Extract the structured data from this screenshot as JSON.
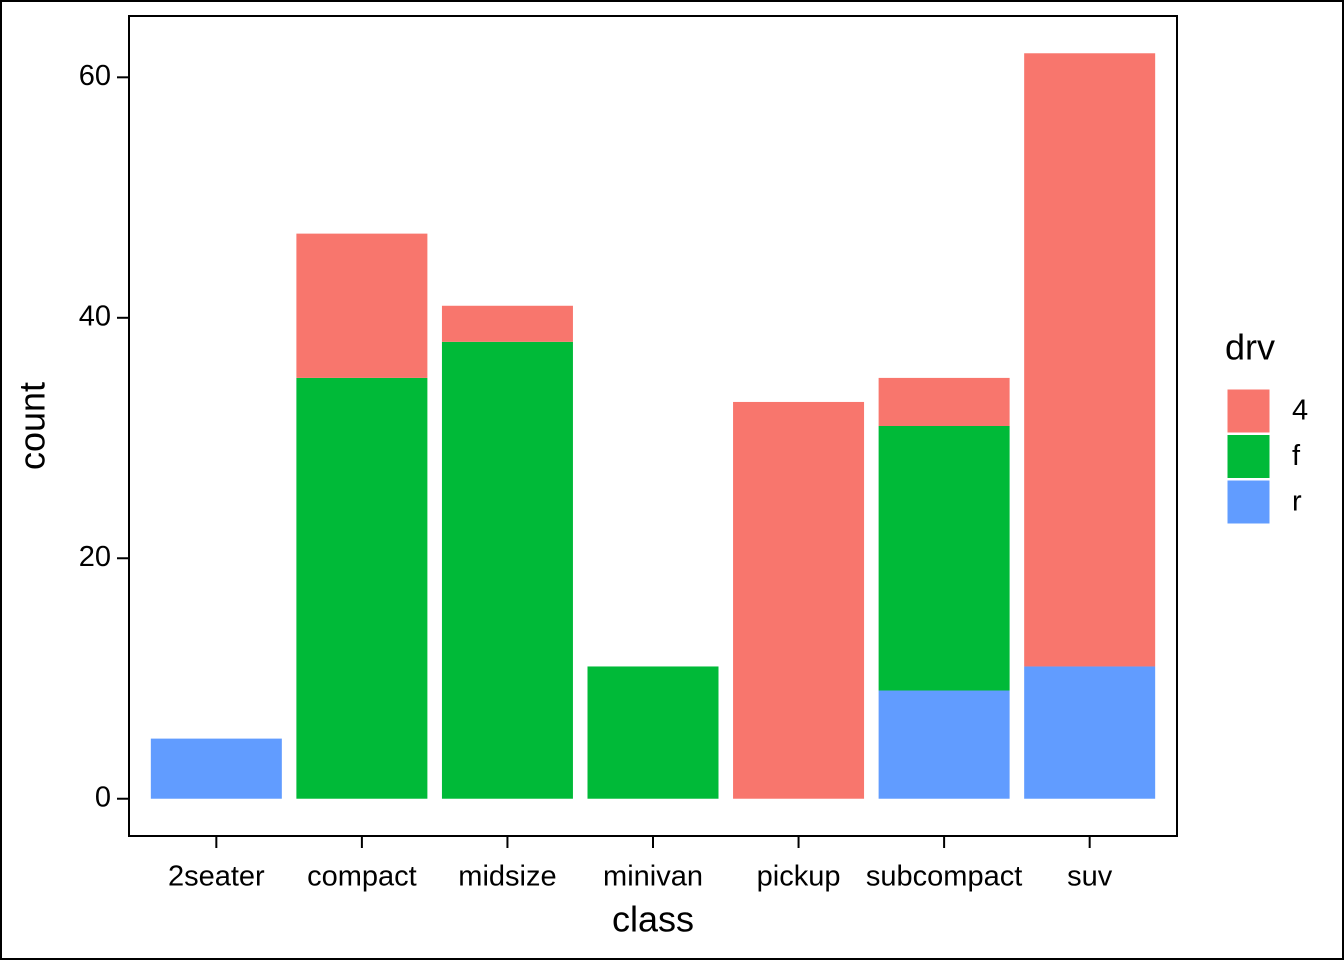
{
  "chart_data": {
    "type": "bar",
    "stacked": true,
    "x_label": "class",
    "y_label": "count",
    "legend_title": "drv",
    "legend": "right",
    "categories": [
      "2seater",
      "compact",
      "midsize",
      "minivan",
      "pickup",
      "subcompact",
      "suv"
    ],
    "series": [
      {
        "name": "4",
        "color": "#F8766D",
        "values": [
          null,
          12,
          3,
          null,
          33,
          4,
          51
        ]
      },
      {
        "name": "f",
        "color": "#00BA38",
        "values": [
          null,
          35,
          38,
          11,
          null,
          22,
          null
        ]
      },
      {
        "name": "r",
        "color": "#619CFF",
        "values": [
          5,
          null,
          null,
          null,
          null,
          9,
          11
        ]
      }
    ],
    "ylim": [
      -3.1,
      65.1
    ],
    "yticks": [
      0,
      20,
      40,
      60
    ],
    "grid": false
  }
}
